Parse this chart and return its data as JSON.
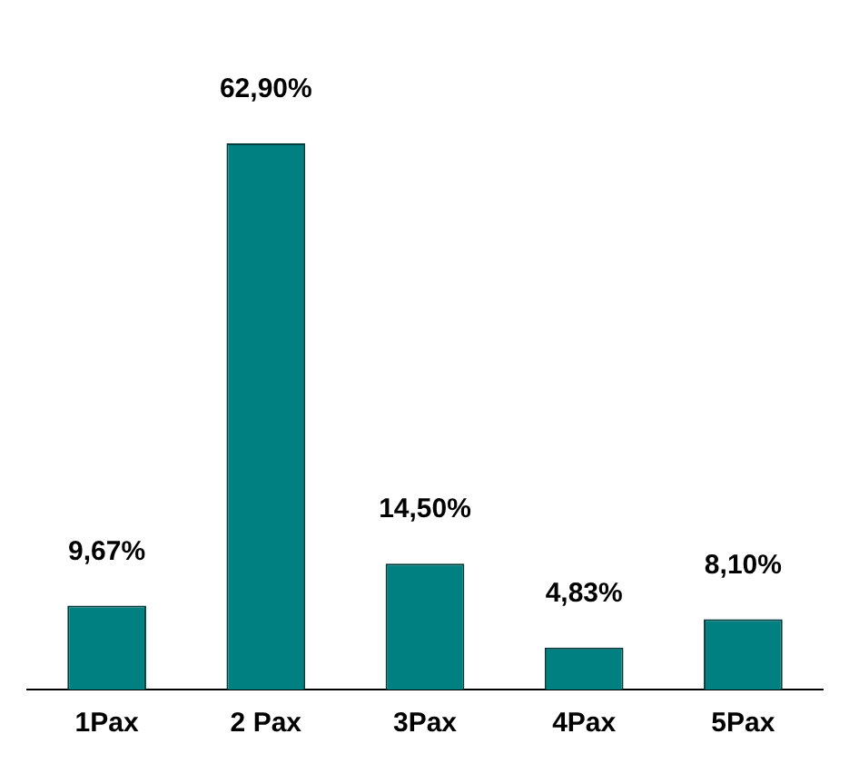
{
  "chart_data": {
    "type": "bar",
    "categories": [
      "1Pax",
      "2 Pax",
      "3Pax",
      "4Pax",
      "5Pax"
    ],
    "values": [
      9.67,
      62.9,
      14.5,
      4.83,
      8.1
    ],
    "value_labels": [
      "9,67%",
      "62,90%",
      "14,50%",
      "4,83%",
      "8,10%"
    ],
    "color": "#008080",
    "grid": false,
    "legend": false,
    "tick_labels": "x"
  }
}
